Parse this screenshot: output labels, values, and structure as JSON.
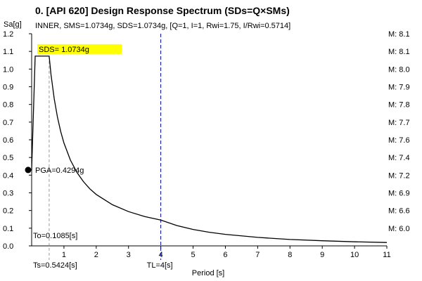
{
  "chart_data": {
    "type": "line",
    "title": "0. [API 620] Design Response Spectrum (SDs=Q×SMs)",
    "subtitle": "INNER, SMS=1.0734g, SDS=1.0734g, [Q=1, I=1, Rwi=1.75, I/Rwi=0.5714]",
    "xlabel": "Period [s]",
    "ylabel": "Sa[g]",
    "xlim": [
      0,
      11
    ],
    "ylim": [
      0,
      1.2
    ],
    "x_ticks": [
      "1",
      "2",
      "3",
      "4",
      "5",
      "6",
      "7",
      "8",
      "9",
      "10",
      "11"
    ],
    "y_ticks": [
      "0.0",
      "0.1",
      "0.2",
      "0.3",
      "0.4",
      "0.5",
      "0.6",
      "0.7",
      "0.8",
      "0.9",
      "1.0",
      "1.1",
      "1.2"
    ],
    "grid": false,
    "series": [
      {
        "x": [
          0,
          0.1085,
          0.5424,
          0.6,
          0.7,
          0.8,
          0.9,
          1.0,
          1.2,
          1.4,
          1.6,
          1.8,
          2.0,
          2.5,
          3.0,
          3.5,
          4.0,
          4.5,
          5.0,
          5.5,
          6.0,
          7.0,
          8.0,
          9.0,
          10.0,
          11.0
        ],
        "y": [
          0.4294,
          1.0734,
          1.0734,
          0.97,
          0.832,
          0.728,
          0.647,
          0.582,
          0.485,
          0.416,
          0.364,
          0.323,
          0.291,
          0.233,
          0.194,
          0.166,
          0.146,
          0.115,
          0.093,
          0.077,
          0.065,
          0.048,
          0.036,
          0.029,
          0.023,
          0.019
        ]
      }
    ],
    "pga": {
      "x": 0,
      "y": 0.4294,
      "label": "PGA=0.4294g"
    },
    "sds": {
      "value": 1.0734,
      "label": "SDS= 1.0734g",
      "highlight_color": "#ffff00"
    },
    "to": {
      "value": 0.1085,
      "label": "To=0.1085[s]"
    },
    "ts": {
      "value": 0.5424,
      "label": "Ts=0.5424[s]",
      "color": "#999999"
    },
    "tl": {
      "value": 4,
      "label": "TL=4[s]",
      "color": "#00008b"
    },
    "magnitudes": [
      {
        "label": "M: 8.1",
        "y": 1.2
      },
      {
        "label": "M: 8.1",
        "y": 1.1
      },
      {
        "label": "M: 8.0",
        "y": 1.0
      },
      {
        "label": "M: 7.9",
        "y": 0.9
      },
      {
        "label": "M: 7.8",
        "y": 0.8
      },
      {
        "label": "M: 7.7",
        "y": 0.7
      },
      {
        "label": "M: 7.6",
        "y": 0.6
      },
      {
        "label": "M: 7.4",
        "y": 0.5
      },
      {
        "label": "M: 7.2",
        "y": 0.4
      },
      {
        "label": "M: 6.9",
        "y": 0.3
      },
      {
        "label": "M: 6.6",
        "y": 0.2
      },
      {
        "label": "M: 6.0",
        "y": 0.1
      }
    ]
  }
}
